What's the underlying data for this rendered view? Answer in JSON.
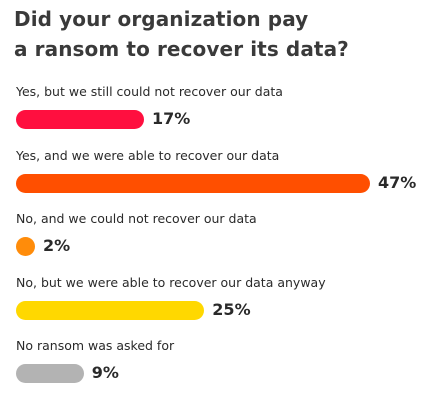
{
  "chart_data": {
    "type": "bar",
    "orientation": "horizontal",
    "title": "Did your organization pay a ransom to recover its data?",
    "title_lines": [
      "Did your organization pay",
      "a ransom to recover its data?"
    ],
    "categories": [
      "Yes, but we still could not recover our data",
      "Yes, and we were able to recover our data",
      "No, and we could not recover our data",
      "No, but we were able to recover our data anyway",
      "No ransom was asked for"
    ],
    "values": [
      17,
      47,
      2,
      25,
      9
    ],
    "value_labels": [
      "17%",
      "47%",
      "2%",
      "25%",
      "9%"
    ],
    "colors": [
      "#ff0f3f",
      "#ff4f00",
      "#ff8c0a",
      "#ffd800",
      "#b3b3b3"
    ],
    "xlim": [
      0,
      47
    ],
    "grid": false,
    "legend": "none"
  }
}
